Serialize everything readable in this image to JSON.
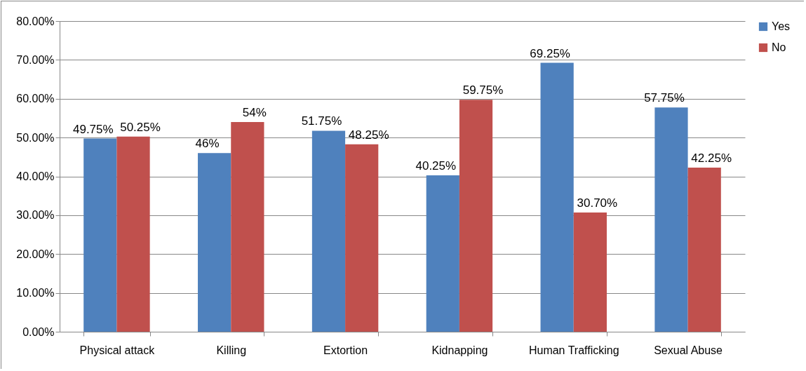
{
  "chart_data": {
    "type": "bar",
    "categories": [
      "Physical attack",
      "Killing",
      "Extortion",
      "Kidnapping",
      "Human Trafficking",
      "Sexual Abuse"
    ],
    "series": [
      {
        "name": "Yes",
        "color": "#4f81bd",
        "values": [
          49.75,
          46,
          51.75,
          40.25,
          69.25,
          57.75
        ],
        "value_labels": [
          "49.75%",
          "46%",
          "51.75%",
          "40.25%",
          "69.25%",
          "57.75%"
        ]
      },
      {
        "name": "No",
        "color": "#c0504d",
        "values": [
          50.25,
          54,
          48.25,
          59.75,
          30.7,
          42.25
        ],
        "value_labels": [
          "50.25%",
          "54%",
          "48.25%",
          "59.75%",
          "30.70%",
          "42.25%"
        ]
      }
    ],
    "ylim": [
      0,
      80
    ],
    "yticks": [
      {
        "value": 0,
        "label": "0.00%"
      },
      {
        "value": 10,
        "label": "10.00%"
      },
      {
        "value": 20,
        "label": "20.00%"
      },
      {
        "value": 30,
        "label": "30.00%"
      },
      {
        "value": 40,
        "label": "40.00%"
      },
      {
        "value": 50,
        "label": "50.00%"
      },
      {
        "value": 60,
        "label": "60.00%"
      },
      {
        "value": 70,
        "label": "70.00%"
      },
      {
        "value": 80,
        "label": "80.00%"
      }
    ],
    "grid": "y",
    "legend": "right"
  }
}
